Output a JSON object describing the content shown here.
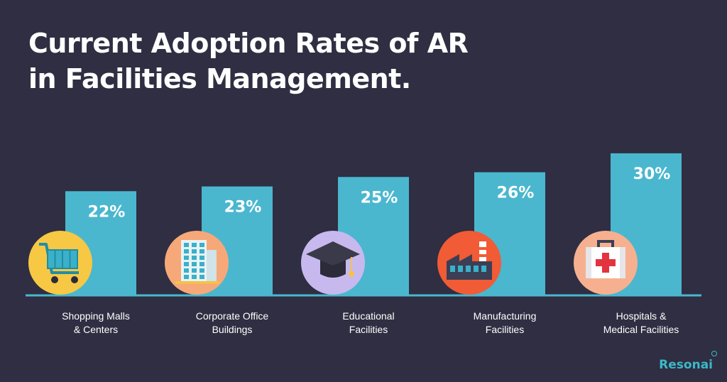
{
  "title_lines": [
    "Current Adoption Rates of AR",
    "in Facilities Management."
  ],
  "brand": "Resonai",
  "colors": {
    "background": "#2f2e42",
    "bar": "#4ab7cf",
    "baseline": "#4ab7cf",
    "text": "#ffffff"
  },
  "chart_data": {
    "type": "bar",
    "title": "Current Adoption Rates of AR in Facilities Management.",
    "categories": [
      [
        "Shopping Malls",
        "& Centers"
      ],
      [
        "Corporate Office",
        "Buildings"
      ],
      [
        "Educational",
        "Facilities"
      ],
      [
        "Manufacturing",
        "Facilities"
      ],
      [
        "Hospitals &",
        "Medical Facilities"
      ]
    ],
    "values": [
      22,
      23,
      25,
      26,
      30
    ],
    "value_labels": [
      "22%",
      "23%",
      "25%",
      "26%",
      "30%"
    ],
    "icons": [
      "shopping-cart-icon",
      "office-building-icon",
      "graduation-cap-icon",
      "factory-icon",
      "first-aid-kit-icon"
    ],
    "icon_colors": [
      "#f7c844",
      "#f6a879",
      "#c7b9ee",
      "#f15b35",
      "#f6b08f"
    ],
    "ylim": [
      0,
      30
    ],
    "grid": false,
    "legend": "none"
  }
}
